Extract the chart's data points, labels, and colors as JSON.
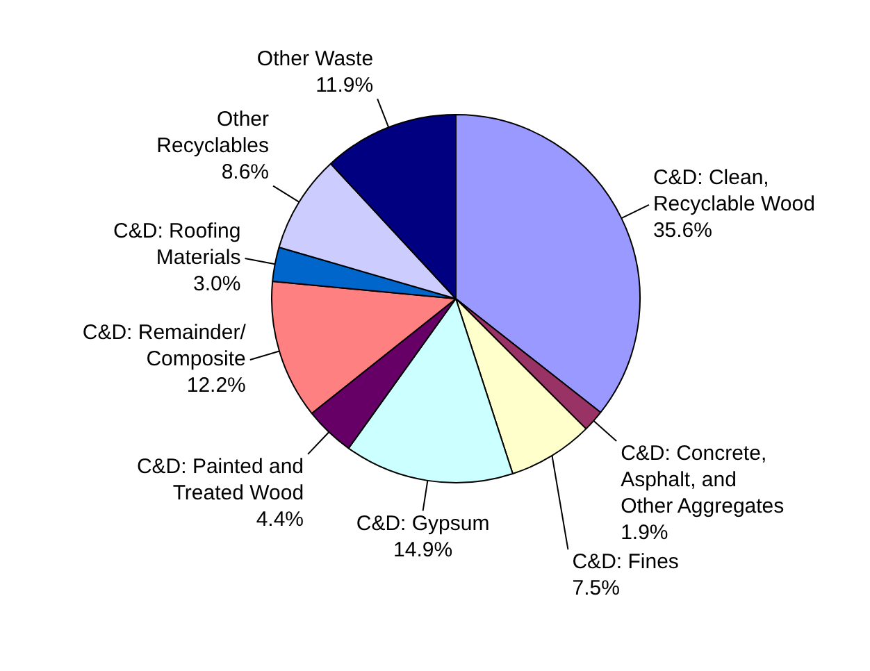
{
  "chart_data": {
    "type": "pie",
    "categories": [
      "C&D: Clean, Recyclable Wood",
      "C&D: Concrete, Asphalt, and Other Aggregates",
      "C&D: Fines",
      "C&D: Gypsum",
      "C&D: Painted and Treated Wood",
      "C&D: Remainder/ Composite",
      "C&D: Roofing Materials",
      "Other Recyclables",
      "Other Waste"
    ],
    "values": [
      35.6,
      1.9,
      7.5,
      14.9,
      4.4,
      12.2,
      3.0,
      8.6,
      11.9
    ],
    "colors": [
      "#9999ff",
      "#993366",
      "#ffffcc",
      "#ccffff",
      "#660066",
      "#ff8080",
      "#0066cc",
      "#ccccff",
      "#000080"
    ],
    "value_labels": [
      "35.6%",
      "1.9%",
      "7.5%",
      "14.9%",
      "4.4%",
      "12.2%",
      "3.0%",
      "8.6%",
      "11.9%"
    ],
    "legend": false
  }
}
